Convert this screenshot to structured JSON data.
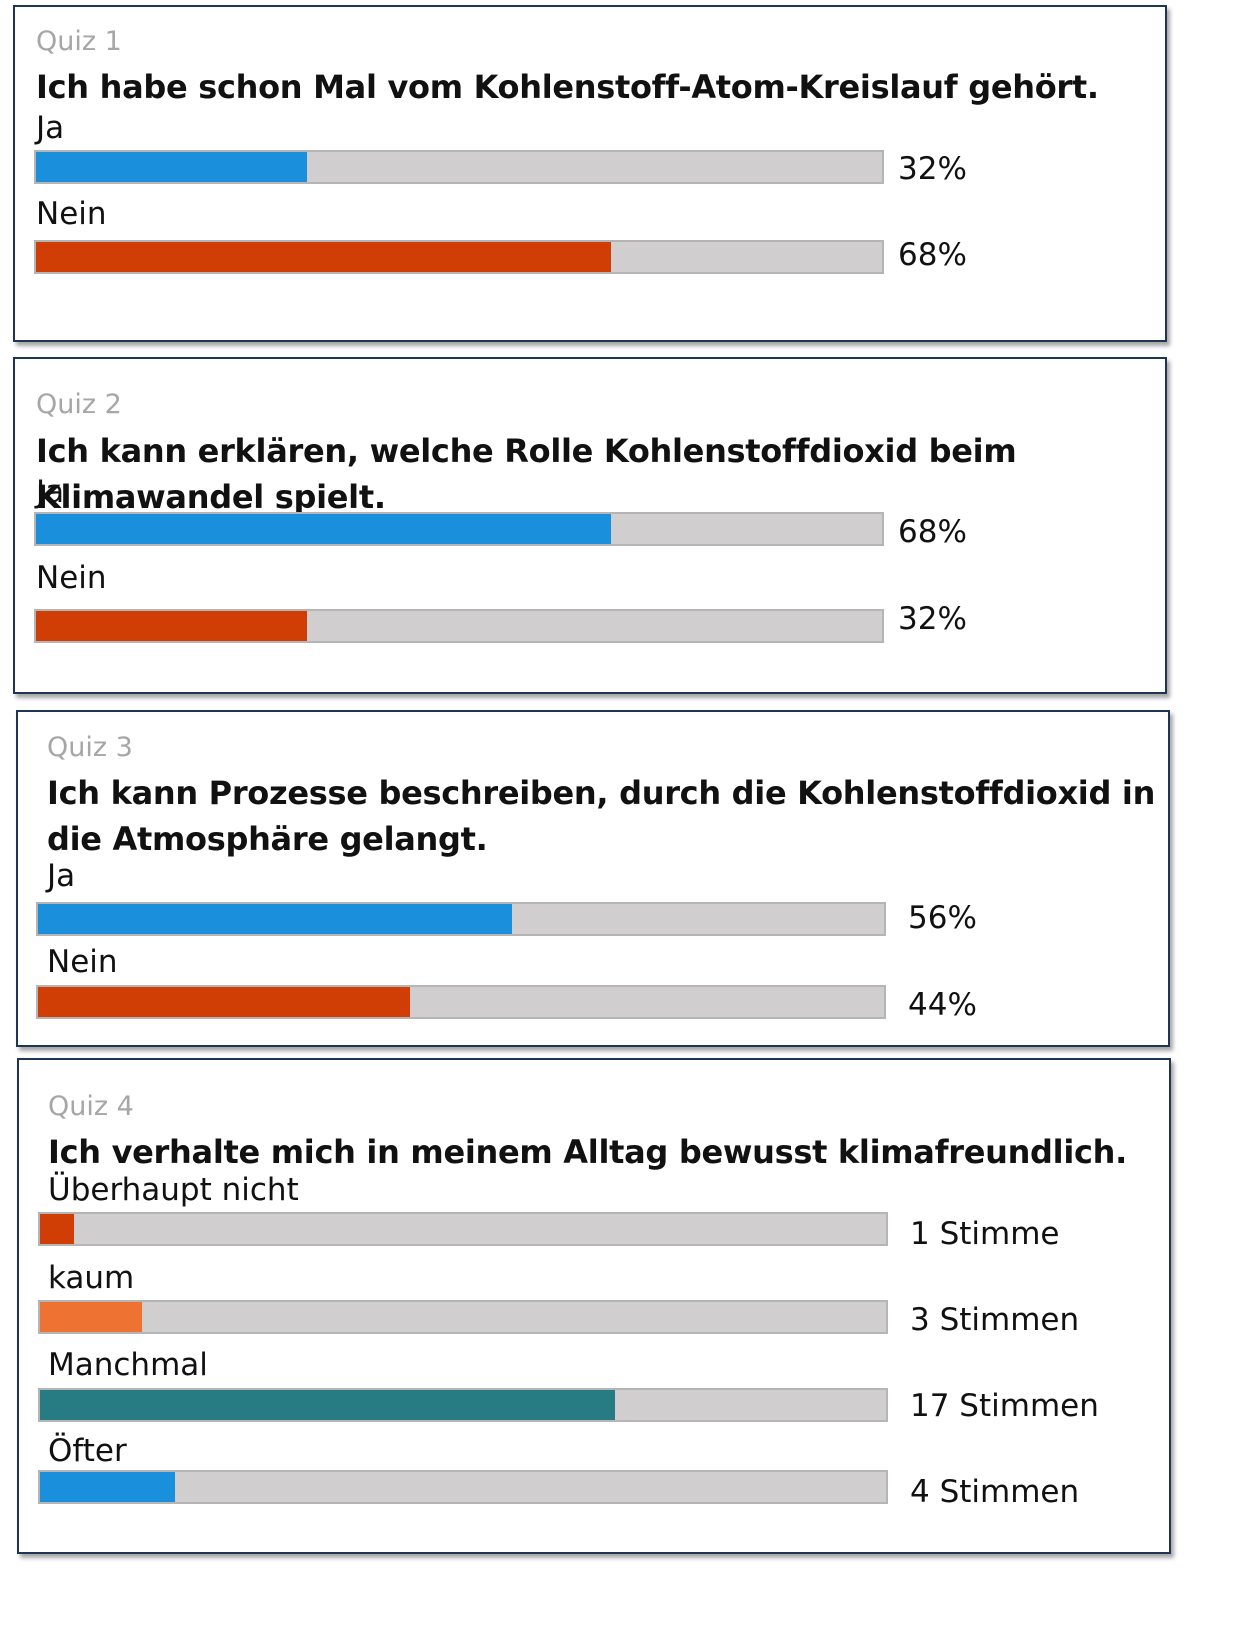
{
  "chart_data": [
    {
      "type": "bar",
      "quiz_label": "Quiz 1",
      "title": "Ich habe schon Mal vom Kohlenstoff-Atom-Kreislauf gehört.",
      "categories": [
        "Ja",
        "Nein"
      ],
      "values": [
        32,
        68
      ],
      "value_labels": [
        "32%",
        "68%"
      ],
      "colors": [
        "#1a8fdc",
        "#d13e05"
      ],
      "max": 100
    },
    {
      "type": "bar",
      "quiz_label": "Quiz 2",
      "title": "Ich kann erklären, welche Rolle Kohlenstoffdioxid beim Klimawandel spielt.",
      "categories": [
        "Ja",
        "Nein"
      ],
      "values": [
        68,
        32
      ],
      "value_labels": [
        "68%",
        "32%"
      ],
      "colors": [
        "#1a8fdc",
        "#d13e05"
      ],
      "max": 100
    },
    {
      "type": "bar",
      "quiz_label": "Quiz 3",
      "title": "Ich kann Prozesse beschreiben, durch die Kohlenstoffdioxid in die Atmosphäre gelangt.",
      "categories": [
        "Ja",
        "Nein"
      ],
      "values": [
        56,
        44
      ],
      "value_labels": [
        "56%",
        "44%"
      ],
      "colors": [
        "#1a8fdc",
        "#d13e05"
      ],
      "max": 100
    },
    {
      "type": "bar",
      "quiz_label": "Quiz 4",
      "title": "Ich verhalte mich in meinem Alltag bewusst klimafreundlich.",
      "categories": [
        "Überhaupt nicht",
        "kaum",
        "Manchmal",
        "Öfter"
      ],
      "values": [
        1,
        3,
        17,
        4
      ],
      "value_labels": [
        "1 Stimme",
        "3 Stimmen",
        "17 Stimmen",
        "4 Stimmen"
      ],
      "colors": [
        "#d13e05",
        "#ee7232",
        "#277b82",
        "#1a8fdc"
      ],
      "max": 25
    }
  ]
}
